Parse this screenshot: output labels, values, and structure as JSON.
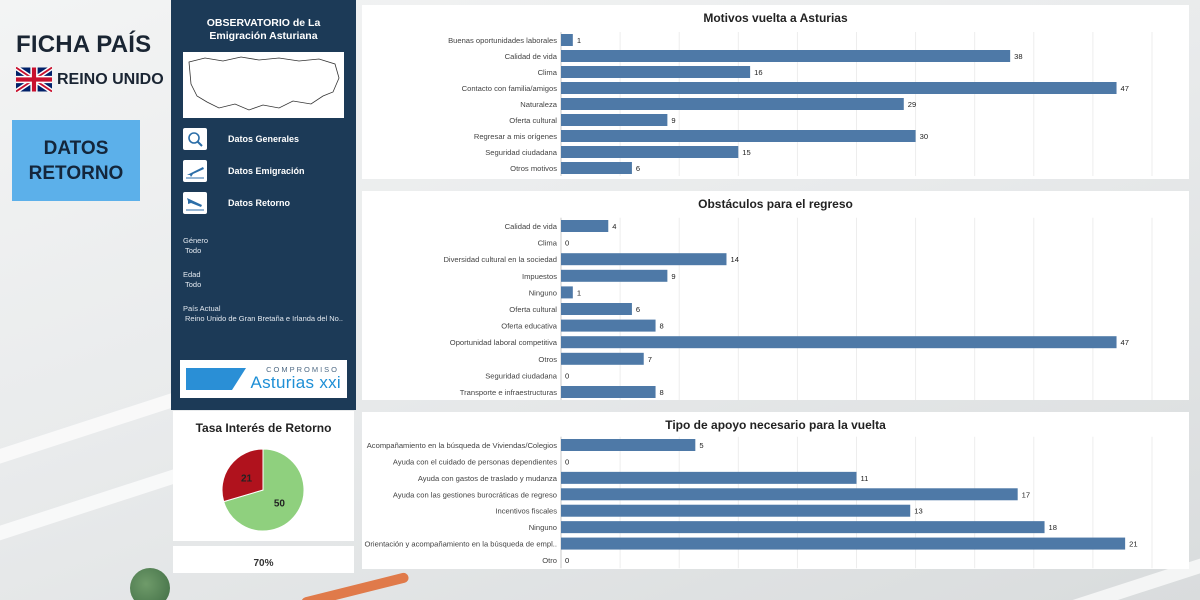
{
  "header": {
    "title": "FICHA PAÍS",
    "country": "REINO UNIDO"
  },
  "section_button": {
    "line1": "DATOS",
    "line2": "RETORNO"
  },
  "panel": {
    "title_line1": "OBSERVATORIO de La",
    "title_line2": "Emigración Asturiana",
    "nav": [
      {
        "label": "Datos Generales",
        "icon": "search-map-icon"
      },
      {
        "label": "Datos Emigración",
        "icon": "plane-takeoff-icon"
      },
      {
        "label": "Datos Retorno",
        "icon": "plane-landing-icon"
      }
    ],
    "filters": [
      {
        "label": "Género",
        "value": "Todo"
      },
      {
        "label": "Edad",
        "value": "Todo"
      },
      {
        "label": "País Actual",
        "value": "Reino Unido de Gran Bretaña e Irlanda del No.."
      }
    ],
    "logo_top": "COMPROMISO",
    "logo_main": "Asturias xxi"
  },
  "gauge": {
    "title": "Tasa Interés de Retorno",
    "slices": [
      {
        "label": "21",
        "value": 21,
        "color": "#b0121d"
      },
      {
        "label": "50",
        "value": 50,
        "color": "#8fd07e"
      }
    ],
    "percent_text": "70%"
  },
  "chart_data": [
    {
      "type": "bar",
      "title": "Motivos vuelta a Asturias",
      "orientation": "horizontal",
      "color": "#4e79a7",
      "categories": [
        "Buenas oportunidades laborales",
        "Calidad de vida",
        "Clima",
        "Contacto con familia/amigos",
        "Naturaleza",
        "Oferta cultural",
        "Regresar a mis orígenes",
        "Seguridad ciudadana",
        "Otros motivos"
      ],
      "values": [
        1,
        38,
        16,
        47,
        29,
        9,
        30,
        15,
        6
      ],
      "xlim": [
        0,
        50
      ],
      "grid": true
    },
    {
      "type": "bar",
      "title": "Obstáculos para el regreso",
      "orientation": "horizontal",
      "color": "#4e79a7",
      "categories": [
        "Calidad de vida",
        "Clima",
        "Diversidad cultural en la sociedad",
        "Impuestos",
        "Ninguno",
        "Oferta cultural",
        "Oferta educativa",
        "Oportunidad laboral competitiva",
        "Otros",
        "Seguridad ciudadana",
        "Transporte e infraestructuras"
      ],
      "values": [
        4,
        0,
        14,
        9,
        1,
        6,
        8,
        47,
        7,
        0,
        8
      ],
      "xlim": [
        0,
        50
      ],
      "grid": true
    },
    {
      "type": "bar",
      "title": "Tipo de apoyo necesario para la vuelta",
      "orientation": "horizontal",
      "color": "#4e79a7",
      "categories": [
        "Acompañamiento en la búsqueda de Viviendas/Colegios",
        "Ayuda con el cuidado de personas dependientes",
        "Ayuda con gastos de traslado y mudanza",
        "Ayuda con las gestiones burocráticas de regreso",
        "Incentivos fiscales",
        "Ninguno",
        "Orientación y acompañamiento en la búsqueda de empl..",
        "Otro"
      ],
      "values": [
        5,
        0,
        11,
        17,
        13,
        18,
        21,
        0
      ],
      "xlim": [
        0,
        22
      ],
      "grid": true
    }
  ]
}
